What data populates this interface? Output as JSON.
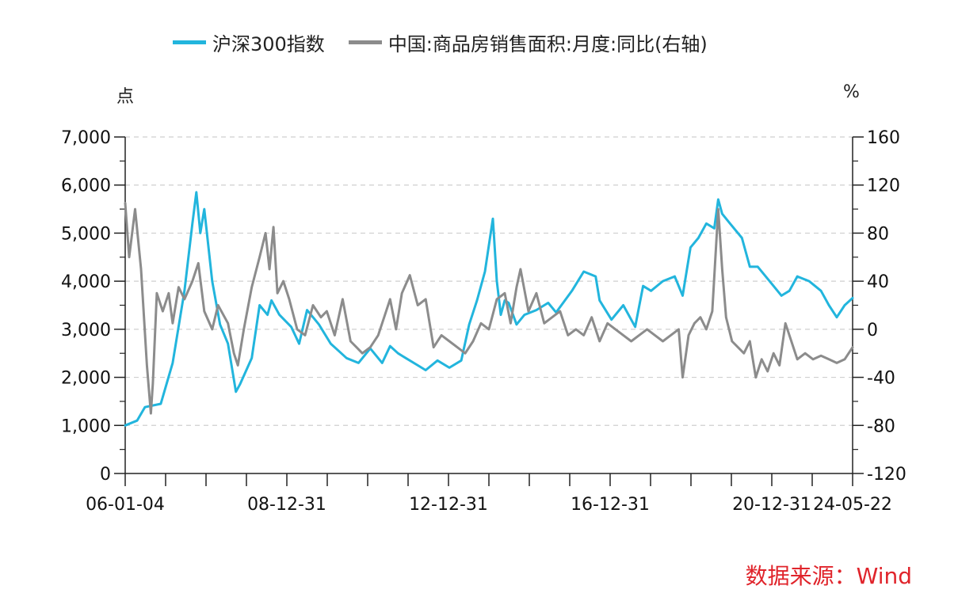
{
  "legend": {
    "series1": "沪深300指数",
    "series2": "中国:商品房销售面积:月度:同比(右轴)"
  },
  "units": {
    "left": "点",
    "right": "%"
  },
  "source": "数据来源：Wind",
  "colors": {
    "series1": "#22b5dd",
    "series2": "#8c8c8c",
    "grid": "#cfcfcf",
    "axis": "#222222",
    "source": "#e0242b"
  },
  "chart_data": {
    "type": "line",
    "x_tick_labels": [
      "06-01-04",
      "08-12-31",
      "12-12-31",
      "16-12-31",
      "20-12-31",
      "24-05-22"
    ],
    "x_range": [
      2006.0,
      2024.4
    ],
    "y_left": {
      "label": "点",
      "range": [
        0,
        7000
      ],
      "ticks": [
        0,
        1000,
        2000,
        3000,
        4000,
        5000,
        6000,
        7000
      ],
      "tick_labels": [
        "0",
        "1,000",
        "2,000",
        "3,000",
        "4,000",
        "5,000",
        "6,000",
        "7,000"
      ]
    },
    "y_right": {
      "label": "%",
      "range": [
        -120,
        160
      ],
      "ticks": [
        -120,
        -80,
        -40,
        0,
        40,
        80,
        120,
        160
      ],
      "tick_labels": [
        "-120",
        "-80",
        "-40",
        "0",
        "40",
        "80",
        "120",
        "160"
      ]
    },
    "grid": true,
    "legend_position": "top",
    "series": [
      {
        "name": "沪深300指数",
        "axis": "left",
        "x": [
          2006.0,
          2006.3,
          2006.5,
          2006.9,
          2007.2,
          2007.5,
          2007.7,
          2007.8,
          2007.9,
          2008.0,
          2008.2,
          2008.4,
          2008.6,
          2008.8,
          2008.9,
          2009.2,
          2009.4,
          2009.6,
          2009.7,
          2009.9,
          2010.2,
          2010.4,
          2010.6,
          2010.8,
          2010.9,
          2011.2,
          2011.4,
          2011.6,
          2011.9,
          2012.2,
          2012.5,
          2012.7,
          2012.9,
          2013.1,
          2013.4,
          2013.6,
          2013.9,
          2014.2,
          2014.5,
          2014.7,
          2014.9,
          2015.1,
          2015.3,
          2015.4,
          2015.5,
          2015.6,
          2015.7,
          2015.9,
          2016.1,
          2016.4,
          2016.7,
          2016.9,
          2017.3,
          2017.6,
          2017.9,
          2018.0,
          2018.3,
          2018.6,
          2018.9,
          2019.1,
          2019.3,
          2019.6,
          2019.9,
          2020.1,
          2020.3,
          2020.5,
          2020.7,
          2020.9,
          2021.0,
          2021.1,
          2021.3,
          2021.6,
          2021.8,
          2022.0,
          2022.3,
          2022.6,
          2022.8,
          2023.0,
          2023.3,
          2023.6,
          2023.8,
          2024.0,
          2024.2,
          2024.4
        ],
        "y": [
          1000,
          1100,
          1380,
          1450,
          2300,
          3800,
          5200,
          5850,
          5000,
          5500,
          4000,
          3100,
          2700,
          1700,
          1850,
          2400,
          3500,
          3300,
          3600,
          3300,
          3050,
          2700,
          3400,
          3200,
          3100,
          2700,
          2550,
          2400,
          2300,
          2600,
          2300,
          2650,
          2500,
          2400,
          2250,
          2150,
          2350,
          2200,
          2350,
          3100,
          3600,
          4200,
          5300,
          4000,
          3300,
          3600,
          3550,
          3100,
          3300,
          3400,
          3550,
          3350,
          3800,
          4200,
          4100,
          3600,
          3200,
          3500,
          3050,
          3900,
          3800,
          4000,
          4100,
          3700,
          4700,
          4900,
          5200,
          5100,
          5700,
          5400,
          5200,
          4900,
          4300,
          4300,
          4000,
          3700,
          3800,
          4100,
          4000,
          3800,
          3500,
          3250,
          3500,
          3650
        ]
      },
      {
        "name": "中国:商品房销售面积:月度:同比(右轴)",
        "axis": "right",
        "x": [
          2006.0,
          2006.1,
          2006.25,
          2006.4,
          2006.55,
          2006.65,
          2006.7,
          2006.8,
          2006.95,
          2007.1,
          2007.2,
          2007.35,
          2007.5,
          2007.7,
          2007.85,
          2008.0,
          2008.2,
          2008.35,
          2008.6,
          2008.75,
          2008.85,
          2009.0,
          2009.2,
          2009.4,
          2009.55,
          2009.65,
          2009.75,
          2009.85,
          2010.0,
          2010.15,
          2010.35,
          2010.55,
          2010.75,
          2010.95,
          2011.1,
          2011.3,
          2011.5,
          2011.7,
          2011.85,
          2012.0,
          2012.2,
          2012.4,
          2012.55,
          2012.7,
          2012.85,
          2013.0,
          2013.2,
          2013.4,
          2013.6,
          2013.8,
          2014.0,
          2014.2,
          2014.4,
          2014.6,
          2014.8,
          2015.0,
          2015.2,
          2015.4,
          2015.6,
          2015.75,
          2015.9,
          2016.0,
          2016.2,
          2016.4,
          2016.6,
          2016.8,
          2017.0,
          2017.2,
          2017.4,
          2017.6,
          2017.8,
          2018.0,
          2018.2,
          2018.4,
          2018.6,
          2018.8,
          2019.0,
          2019.2,
          2019.4,
          2019.6,
          2019.8,
          2020.0,
          2020.1,
          2020.25,
          2020.4,
          2020.55,
          2020.7,
          2020.85,
          2021.0,
          2021.1,
          2021.2,
          2021.35,
          2021.5,
          2021.65,
          2021.8,
          2021.95,
          2022.1,
          2022.25,
          2022.4,
          2022.55,
          2022.7,
          2022.85,
          2023.0,
          2023.2,
          2023.4,
          2023.6,
          2023.8,
          2024.0,
          2024.2,
          2024.4
        ],
        "y": [
          105,
          60,
          100,
          50,
          -30,
          -70,
          -45,
          30,
          15,
          30,
          5,
          35,
          25,
          40,
          55,
          15,
          0,
          20,
          5,
          -20,
          -30,
          0,
          35,
          60,
          80,
          50,
          85,
          30,
          40,
          25,
          0,
          -5,
          20,
          10,
          15,
          -5,
          25,
          -10,
          -15,
          -20,
          -15,
          -5,
          10,
          25,
          0,
          30,
          45,
          20,
          25,
          -15,
          -5,
          -10,
          -15,
          -20,
          -10,
          5,
          0,
          25,
          30,
          5,
          35,
          50,
          15,
          30,
          5,
          10,
          15,
          -5,
          0,
          -5,
          10,
          -10,
          5,
          0,
          -5,
          -10,
          -5,
          0,
          -5,
          -10,
          -5,
          0,
          -40,
          -5,
          5,
          10,
          0,
          15,
          100,
          50,
          10,
          -10,
          -15,
          -20,
          -10,
          -40,
          -25,
          -35,
          -20,
          -30,
          5,
          -10,
          -25,
          -20,
          -25,
          -22,
          -25,
          -28,
          -25,
          -15
        ]
      }
    ]
  }
}
